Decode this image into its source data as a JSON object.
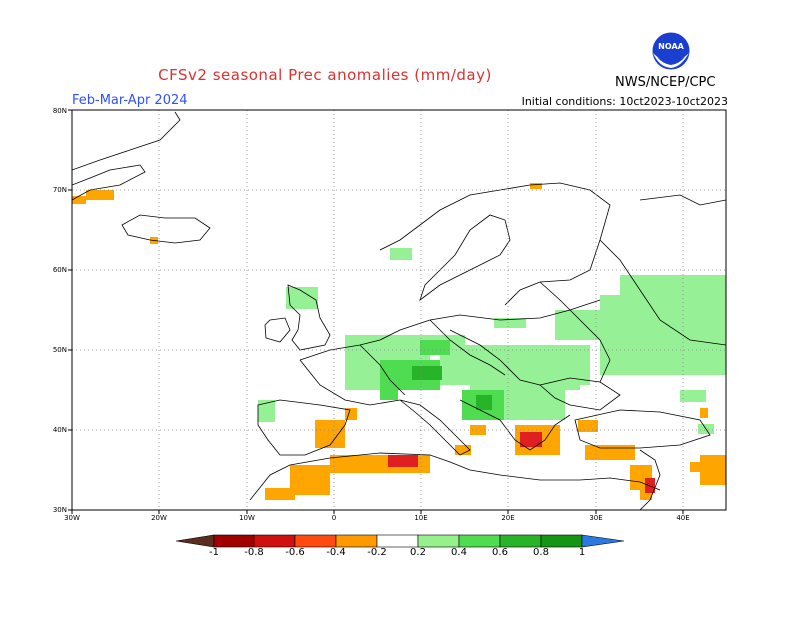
{
  "title": "CFSv2 seasonal Prec anomalies (mm/day)",
  "season": "Feb-Mar-Apr 2024",
  "initial_conditions": "Initial conditions: 10ct2023-10ct2023",
  "agency": "NWS/NCEP/CPC",
  "logo_text": "NOAA",
  "icons": {
    "logo": "noaa-logo-icon"
  },
  "map": {
    "lon_range": [
      -30,
      45
    ],
    "lat_range": [
      30,
      80
    ],
    "lat_ticks": [
      "30N",
      "40N",
      "50N",
      "60N",
      "70N",
      "80N"
    ],
    "lon_ticks": [
      "30W",
      "20W",
      "10W",
      "0",
      "10E",
      "20E",
      "30E",
      "40E"
    ],
    "grid": "dotted"
  },
  "legend": {
    "labels": [
      "-1",
      "-0.8",
      "-0.6",
      "-0.4",
      "-0.2",
      "0.2",
      "0.4",
      "0.6",
      "0.8",
      "1"
    ],
    "colors": [
      "#5a2d1e",
      "#a00000",
      "#d01010",
      "#ff4a10",
      "#ff9900",
      "#ffffff",
      "#96f08c",
      "#50dc50",
      "#28b428",
      "#149614",
      "#2a7ae0"
    ]
  },
  "anomaly_colors": {
    "dry_strong": "#e02020",
    "dry": "#ffa500",
    "wet_light": "#96f096",
    "wet": "#50dc50",
    "wet_strong": "#28b428"
  }
}
